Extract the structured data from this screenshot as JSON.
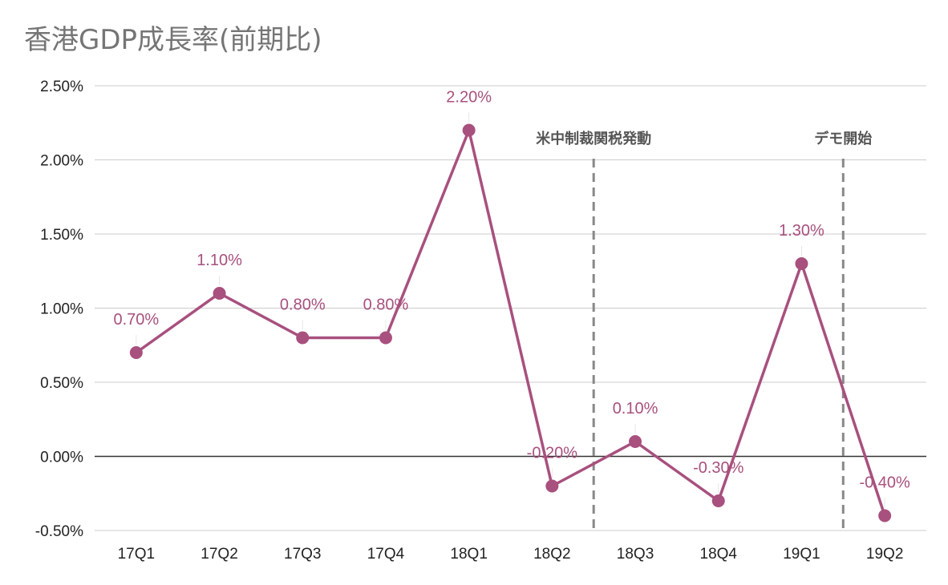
{
  "chart_data": {
    "type": "line",
    "title": "香港GDP成長率(前期比)",
    "xlabel": "",
    "ylabel": "",
    "categories": [
      "17Q1",
      "17Q2",
      "17Q3",
      "17Q4",
      "18Q1",
      "18Q2",
      "18Q3",
      "18Q4",
      "19Q1",
      "19Q2"
    ],
    "series": [
      {
        "values": [
          0.7,
          1.1,
          0.8,
          0.8,
          2.2,
          -0.2,
          0.1,
          -0.3,
          1.3,
          -0.4
        ],
        "data_labels": [
          "0.70%",
          "1.10%",
          "0.80%",
          "0.80%",
          "2.20%",
          "-0.20%",
          "0.10%",
          "-0.30%",
          "1.30%",
          "-0.40%"
        ],
        "color": "#a8507e"
      }
    ],
    "ylim": [
      -0.5,
      2.5
    ],
    "yticks": [
      2.5,
      2.0,
      1.5,
      1.0,
      0.5,
      0.0,
      -0.5
    ],
    "ytick_labels": [
      "2.50%",
      "2.00%",
      "1.50%",
      "1.00%",
      "0.50%",
      "0.00%",
      "-0.50%"
    ],
    "grid": true,
    "annotations": [
      {
        "text": "米中制裁関税発動",
        "between": [
          "18Q2",
          "18Q3"
        ],
        "style": "dashed-vertical"
      },
      {
        "text": "デモ開始",
        "between": [
          "19Q1",
          "19Q2"
        ],
        "style": "dashed-vertical"
      }
    ],
    "colors": {
      "line": "#a8507e",
      "grid": "#cccccc",
      "zero_line": "#333333",
      "annotation_line": "#888888"
    }
  }
}
